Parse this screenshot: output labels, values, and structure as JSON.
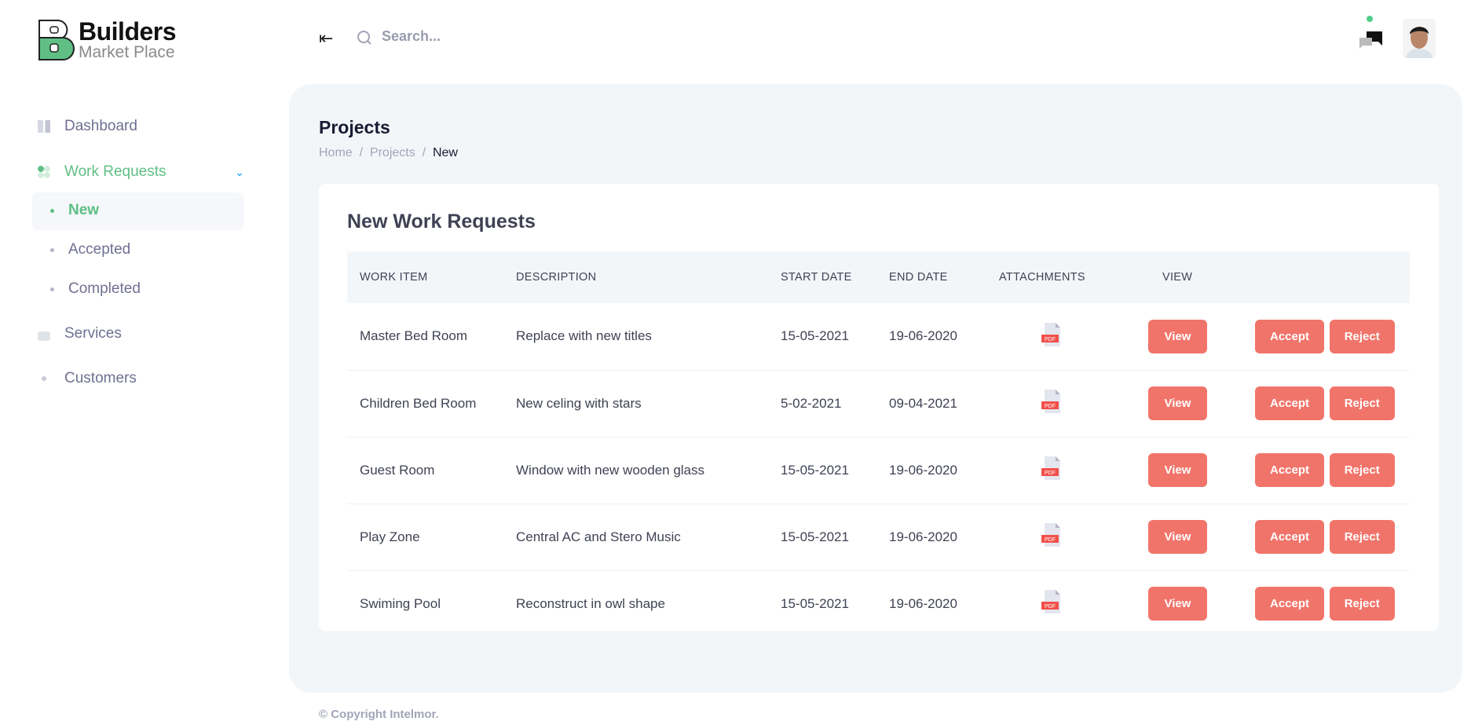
{
  "brand": {
    "name": "Builders",
    "tagline": "Market Place"
  },
  "header": {
    "search_placeholder": "Search...",
    "collapse_icon": "collapse-left-icon",
    "search_icon": "search-icon",
    "chat_icon": "chat-icon",
    "status_color": "#50cd89"
  },
  "sidebar": {
    "items": [
      {
        "label": "Dashboard",
        "icon": "dashboard-icon"
      },
      {
        "label": "Work Requests",
        "icon": "grid-icon",
        "expanded": true,
        "children": [
          {
            "label": "New",
            "active": true
          },
          {
            "label": "Accepted"
          },
          {
            "label": "Completed"
          }
        ]
      },
      {
        "label": "Services",
        "icon": "lock-icon"
      },
      {
        "label": "Customers",
        "icon": "diamond-icon"
      }
    ]
  },
  "page": {
    "title": "Projects",
    "breadcrumb": [
      "Home",
      "Projects",
      "New"
    ]
  },
  "card": {
    "title": "New Work Requests",
    "columns": [
      "WORK ITEM",
      "DESCRIPTION",
      "START DATE",
      "END DATE",
      "ATTACHMENTS",
      "VIEW"
    ],
    "rows": [
      {
        "item": "Master Bed Room",
        "description": "Replace with new titles",
        "start": "15-05-2021",
        "end": "19-06-2020",
        "attachment": "PDF"
      },
      {
        "item": "Children Bed Room",
        "description": "New celing with stars",
        "start": "5-02-2021",
        "end": "09-04-2021",
        "attachment": "PDF"
      },
      {
        "item": "Guest Room",
        "description": "Window with new wooden glass",
        "start": "15-05-2021",
        "end": "19-06-2020",
        "attachment": "PDF"
      },
      {
        "item": "Play Zone",
        "description": "Central AC and Stero Music",
        "start": "15-05-2021",
        "end": "19-06-2020",
        "attachment": "PDF"
      },
      {
        "item": "Swiming Pool",
        "description": "Reconstruct in owl shape",
        "start": "15-05-2021",
        "end": "19-06-2020",
        "attachment": "PDF"
      }
    ],
    "view_label": "View",
    "accept_label": "Accept",
    "reject_label": "Reject",
    "button_color": "#f1746a"
  },
  "footer": {
    "text": "© Copyright Intelmor."
  },
  "colors": {
    "accent": "#5fbf85",
    "panel": "#f3f6f9"
  }
}
